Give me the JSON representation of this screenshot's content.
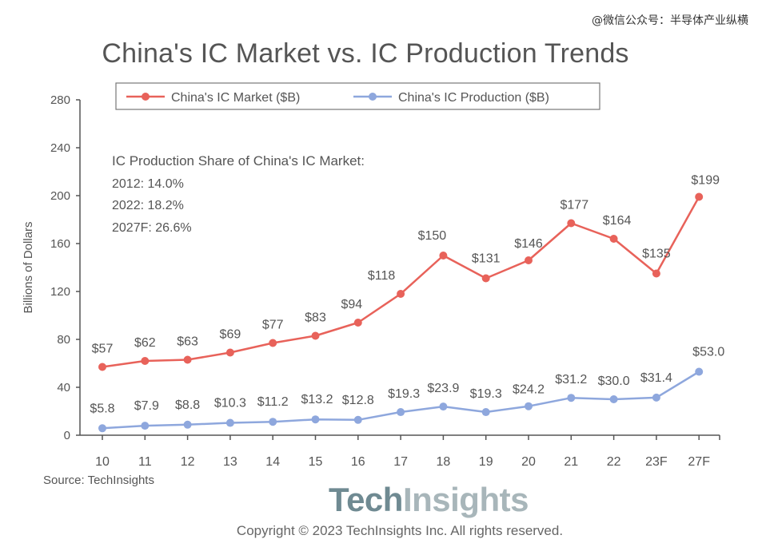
{
  "watermark": "@微信公众号：半导体产业纵横",
  "source": "Source: TechInsights",
  "brand": {
    "part1": "Tech",
    "part2": "Insights"
  },
  "copyright": "Copyright © 2023 TechInsights Inc.  All rights reserved.",
  "colors": {
    "market": "#e8625a",
    "production": "#8ea7dd",
    "axis": "#555555",
    "text": "#555555"
  },
  "chart_data": {
    "type": "line",
    "title": "China's IC Market vs. IC Production Trends",
    "xlabel": "",
    "ylabel": "Billions of Dollars",
    "ylim": [
      0,
      280
    ],
    "yticks": [
      0,
      40,
      80,
      120,
      160,
      200,
      240,
      280
    ],
    "categories": [
      "10",
      "11",
      "12",
      "13",
      "14",
      "15",
      "16",
      "17",
      "18",
      "19",
      "20",
      "21",
      "22",
      "23F",
      "27F"
    ],
    "grid": false,
    "legend_position": "top",
    "series": [
      {
        "name": "China's IC Market ($B)",
        "color": "#e8625a",
        "values": [
          57,
          62,
          63,
          69,
          77,
          83,
          94,
          118,
          150,
          131,
          146,
          177,
          164,
          135,
          199
        ],
        "labels": [
          "$57",
          "$62",
          "$63",
          "$69",
          "$77",
          "$83",
          "$94",
          "$118",
          "$150",
          "$131",
          "$146",
          "$177",
          "$164",
          "$135",
          "$199"
        ]
      },
      {
        "name": "China's IC Production ($B)",
        "color": "#8ea7dd",
        "values": [
          5.8,
          7.9,
          8.8,
          10.3,
          11.2,
          13.2,
          12.8,
          19.3,
          23.9,
          19.3,
          24.2,
          31.2,
          30.0,
          31.4,
          53.0
        ],
        "labels": [
          "$5.8",
          "$7.9",
          "$8.8",
          "$10.3",
          "$11.2",
          "$13.2",
          "$12.8",
          "$19.3",
          "$23.9",
          "$19.3",
          "$24.2",
          "$31.2",
          "$30.0",
          "$31.4",
          "$53.0"
        ]
      }
    ],
    "annotations": [
      "IC Production Share of China's IC Market:",
      "2012: 14.0%",
      "2022: 18.2%",
      "2027F: 26.6%"
    ]
  }
}
